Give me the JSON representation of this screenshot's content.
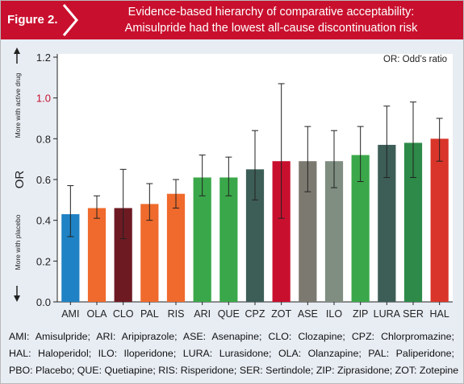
{
  "header": {
    "figure_label": "Figure 2.",
    "title_line1": "Evidence-based hierarchy of comparative acceptability:",
    "title_line2": "Amisulpride had the lowest all-cause discontinuation risk"
  },
  "footer": {
    "line1": "AMI: Amisulpride; ARI: Aripiprazole; ASE: Asenapine; CLO: Clozapine; CPZ: Chlorpromazine;",
    "line2": "HAL: Haloperidol; ILO: Iloperidone; LURA: Lurasidone; OLA: Olanzapine; PAL: Paliperidone;",
    "line3": "PBO: Placebo; QUE: Quetiapine; RIS: Risperidone; SER: Sertindole; ZIP: Ziprasidone; ZOT: Zotepine"
  },
  "chart_data": {
    "type": "bar",
    "ylabel": "OR",
    "ylim": [
      0.0,
      1.2
    ],
    "yticks": [
      "0.0",
      "0.2",
      "0.4",
      "0.6",
      "0.8",
      "1.0",
      "1.2"
    ],
    "highlight_tick": "1.0",
    "highlight_color": "#c8102e",
    "grid": false,
    "legend_note": "OR: Odd’s ratio",
    "upper_arrow_label": "More with active drug",
    "lower_arrow_label": "More with placebo",
    "categories": [
      "AMI",
      "OLA",
      "CLO",
      "PAL",
      "RIS",
      "ARI",
      "QUE",
      "CPZ",
      "ZOT",
      "ASE",
      "ILO",
      "ZIP",
      "LURA",
      "SER",
      "HAL"
    ],
    "values": [
      0.43,
      0.46,
      0.46,
      0.48,
      0.53,
      0.61,
      0.61,
      0.65,
      0.69,
      0.69,
      0.69,
      0.72,
      0.77,
      0.78,
      0.8
    ],
    "ci_lower": [
      0.32,
      0.41,
      0.31,
      0.4,
      0.46,
      0.52,
      0.52,
      0.5,
      0.41,
      0.54,
      0.56,
      0.59,
      0.61,
      0.61,
      0.69
    ],
    "ci_upper": [
      0.57,
      0.52,
      0.65,
      0.58,
      0.6,
      0.72,
      0.71,
      0.84,
      1.07,
      0.86,
      0.84,
      0.86,
      0.96,
      0.98,
      0.9
    ],
    "colors": [
      "#1f82c4",
      "#ef6a2c",
      "#6e1a22",
      "#ef6a2c",
      "#ef6a2c",
      "#3aa84a",
      "#3aa84a",
      "#3d5e57",
      "#c8102e",
      "#7c7a70",
      "#7f8e80",
      "#3aa84a",
      "#3d5e57",
      "#2e8a48",
      "#d9352a"
    ]
  }
}
